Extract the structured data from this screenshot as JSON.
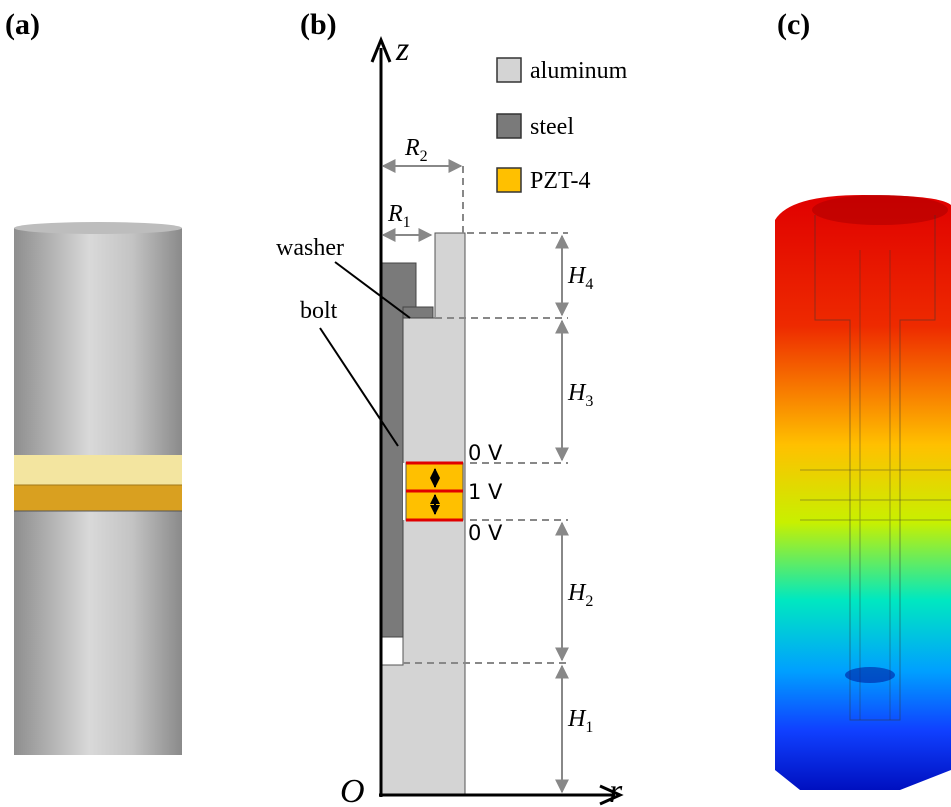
{
  "panels": [
    {
      "label": "(a)"
    },
    {
      "label": "(b)"
    },
    {
      "label": "(c)"
    }
  ],
  "axes": {
    "z": "z",
    "r": "r",
    "origin": "O"
  },
  "legend": [
    {
      "name": "aluminum",
      "color": "#d4d4d4"
    },
    {
      "name": "steel",
      "color": "#7a7a7a"
    },
    {
      "name": "PZT-4",
      "color": "#ffc000"
    }
  ],
  "labels": {
    "washer": "washer",
    "bolt": "bolt"
  },
  "dimensions": [
    {
      "symbol": "R",
      "subscript": "2"
    },
    {
      "symbol": "R",
      "subscript": "1"
    },
    {
      "symbol": "H",
      "subscript": "4"
    },
    {
      "symbol": "H",
      "subscript": "3"
    },
    {
      "symbol": "H",
      "subscript": "2"
    },
    {
      "symbol": "H",
      "subscript": "1"
    }
  ],
  "voltages": [
    "0 V",
    "1 V",
    "0 V"
  ]
}
